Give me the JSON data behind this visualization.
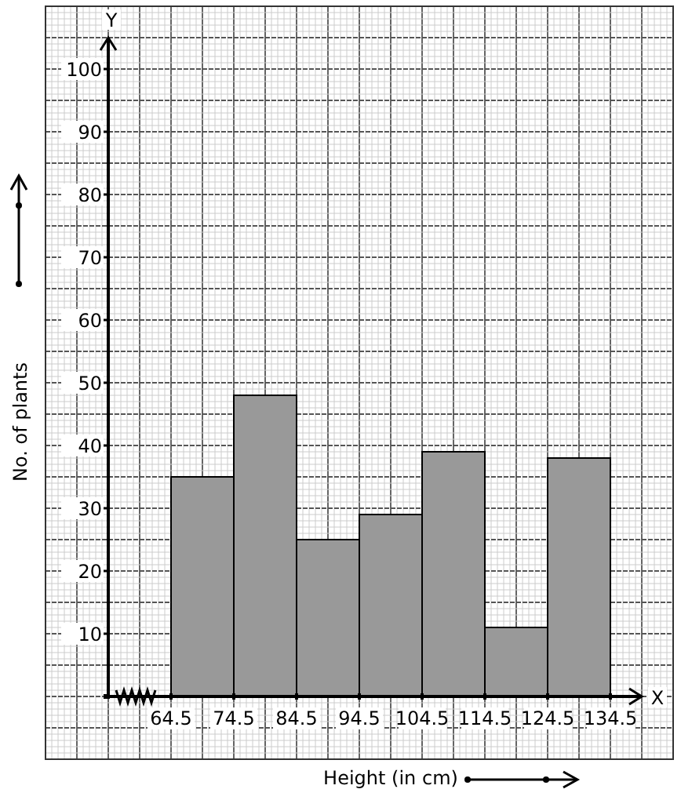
{
  "chart_data": {
    "type": "histogram",
    "xlabel": "Height (in cm)",
    "ylabel": "No. of plants",
    "bins": [
      64.5,
      74.5,
      84.5,
      94.5,
      104.5,
      114.5,
      124.5,
      134.5
    ],
    "values": [
      35,
      48,
      25,
      29,
      39,
      11,
      38
    ],
    "color": "#999999",
    "xlim": [
      54.5,
      139.5
    ],
    "ylim": [
      0,
      105
    ],
    "xticks": [
      64.5,
      74.5,
      84.5,
      94.5,
      104.5,
      114.5,
      124.5,
      134.5
    ],
    "yticks": [
      10,
      20,
      30,
      40,
      50,
      60,
      70,
      80,
      90,
      100
    ],
    "annotations": [
      "Y",
      "X"
    ],
    "grid": true
  }
}
